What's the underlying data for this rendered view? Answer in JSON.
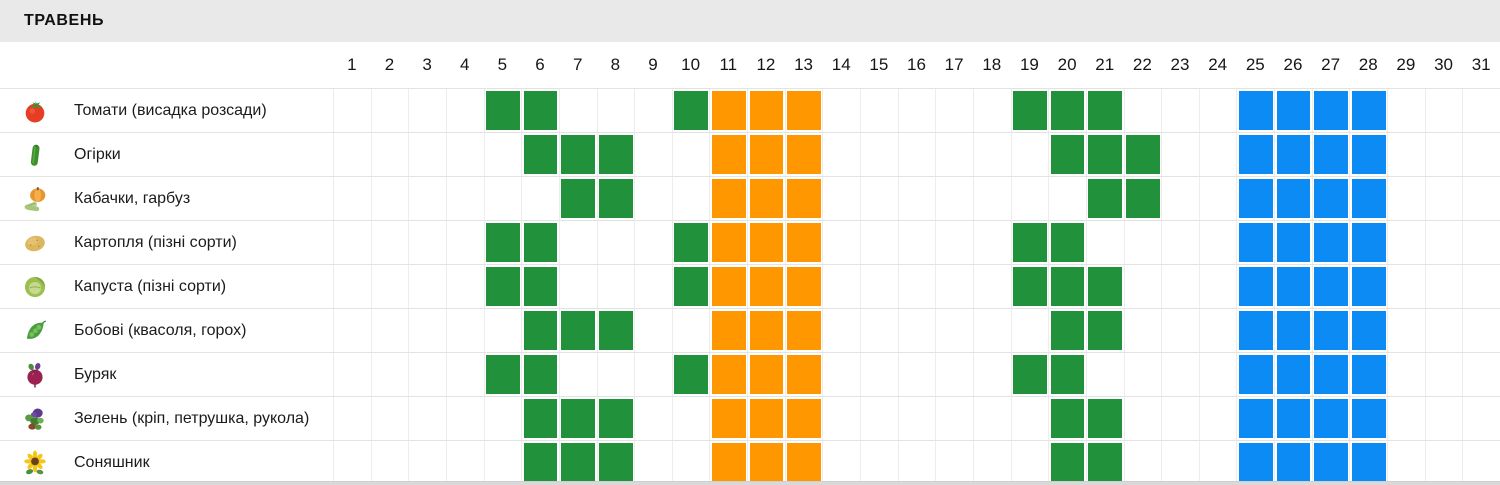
{
  "chart_data": {
    "type": "heatmap",
    "title": "ТРАВЕНЬ",
    "x_labels": [
      1,
      2,
      3,
      4,
      5,
      6,
      7,
      8,
      9,
      10,
      11,
      12,
      13,
      14,
      15,
      16,
      17,
      18,
      19,
      20,
      21,
      22,
      23,
      24,
      25,
      26,
      27,
      28,
      29,
      30,
      31
    ],
    "x_range": [
      1,
      31
    ],
    "legend_position": "none",
    "grid": true,
    "colors": {
      "green": "#21923B",
      "orange": "#FF9800",
      "blue": "#0D8BF5"
    },
    "rows": [
      {
        "label": "Томати (висадка розсади)",
        "icon": "tomato-icon",
        "cells": {
          "green": [
            5,
            6,
            10,
            19,
            20,
            21
          ],
          "orange": [
            11,
            12,
            13
          ],
          "blue": [
            25,
            26,
            27,
            28
          ]
        }
      },
      {
        "label": "Огірки",
        "icon": "cucumber-icon",
        "cells": {
          "green": [
            6,
            7,
            8,
            20,
            21,
            22
          ],
          "orange": [
            11,
            12,
            13
          ],
          "blue": [
            25,
            26,
            27,
            28
          ]
        }
      },
      {
        "label": "Кабачки, гарбуз",
        "icon": "squash-pumpkin-icon",
        "cells": {
          "green": [
            7,
            8,
            21,
            22
          ],
          "orange": [
            11,
            12,
            13
          ],
          "blue": [
            25,
            26,
            27,
            28
          ]
        }
      },
      {
        "label": "Картопля (пізні сорти)",
        "icon": "potato-icon",
        "cells": {
          "green": [
            5,
            6,
            10,
            19,
            20
          ],
          "orange": [
            11,
            12,
            13
          ],
          "blue": [
            25,
            26,
            27,
            28
          ]
        }
      },
      {
        "label": "Капуста (пізні сорти)",
        "icon": "cabbage-icon",
        "cells": {
          "green": [
            5,
            6,
            10,
            19,
            20,
            21
          ],
          "orange": [
            11,
            12,
            13
          ],
          "blue": [
            25,
            26,
            27,
            28
          ]
        }
      },
      {
        "label": "Бобові (квасоля, горох)",
        "icon": "pea-pod-icon",
        "cells": {
          "green": [
            6,
            7,
            8,
            20,
            21
          ],
          "orange": [
            11,
            12,
            13
          ],
          "blue": [
            25,
            26,
            27,
            28
          ]
        }
      },
      {
        "label": "Буряк",
        "icon": "beet-icon",
        "cells": {
          "green": [
            5,
            6,
            10,
            19,
            20
          ],
          "orange": [
            11,
            12,
            13
          ],
          "blue": [
            25,
            26,
            27,
            28
          ]
        }
      },
      {
        "label": "Зелень (кріп, петрушка, рукола)",
        "icon": "herbs-icon",
        "cells": {
          "green": [
            6,
            7,
            8,
            20,
            21
          ],
          "orange": [
            11,
            12,
            13
          ],
          "blue": [
            25,
            26,
            27,
            28
          ]
        }
      },
      {
        "label": "Соняшник",
        "icon": "sunflower-icon",
        "cells": {
          "green": [
            6,
            7,
            8,
            20,
            21
          ],
          "orange": [
            11,
            12,
            13
          ],
          "blue": [
            25,
            26,
            27,
            28
          ]
        }
      }
    ]
  }
}
